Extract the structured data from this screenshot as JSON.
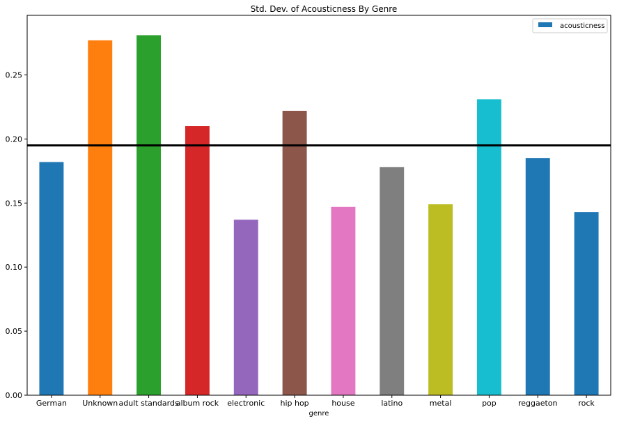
{
  "chart_data": {
    "type": "bar",
    "title": "Std. Dev. of Acousticness By Genre",
    "xlabel": "genre",
    "ylabel": "",
    "categories": [
      "German",
      "Unknown",
      "adult standards",
      "album rock",
      "electronic",
      "hip hop",
      "house",
      "latino",
      "metal",
      "pop",
      "reggaeton",
      "rock"
    ],
    "series": [
      {
        "name": "acousticness",
        "values": [
          0.182,
          0.277,
          0.281,
          0.21,
          0.137,
          0.222,
          0.147,
          0.178,
          0.149,
          0.231,
          0.185,
          0.143
        ]
      }
    ],
    "bar_colors": [
      "#1f77b4",
      "#ff7f0e",
      "#2ca02c",
      "#d62728",
      "#9467bd",
      "#8c564b",
      "#e377c2",
      "#7f7f7f",
      "#bcbd22",
      "#17becf",
      "#1f77b4",
      "#1f77b4"
    ],
    "reference_line": {
      "value": 0.195,
      "color": "#000000"
    },
    "ylim": [
      0,
      0.2965
    ],
    "yticks": [
      "0.00",
      "0.05",
      "0.10",
      "0.15",
      "0.20",
      "0.25"
    ],
    "ytick_values": [
      0,
      0.05,
      0.1,
      0.15,
      0.2,
      0.25
    ],
    "legend": {
      "placement": "top-right",
      "entry": "acousticness",
      "color": "#1f77b4"
    },
    "grid": false
  }
}
